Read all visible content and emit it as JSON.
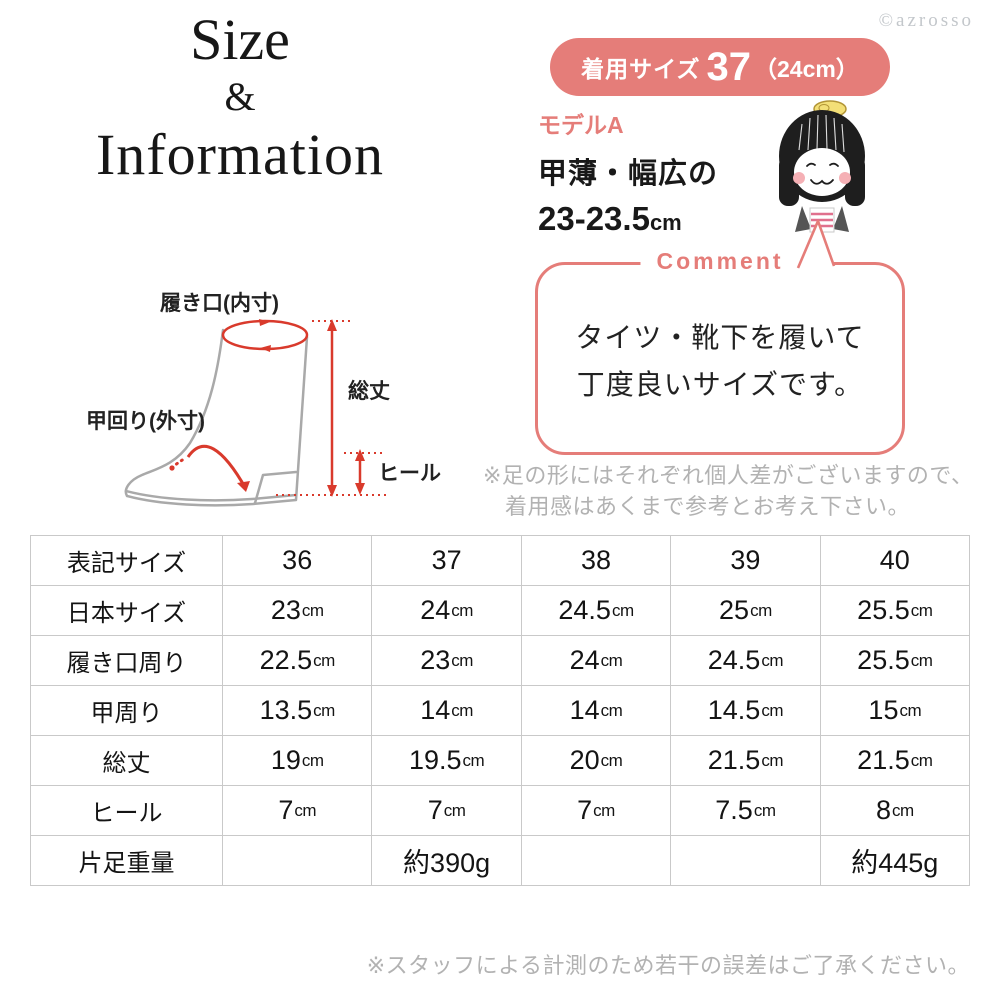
{
  "colors": {
    "accent_pink": "#e57d79",
    "diagram_red": "#d93a2c",
    "note_gray": "#b2b2b2",
    "table_border": "#c9c9c9",
    "text_black": "#1f1f1f"
  },
  "header": {
    "title_line1": "Size",
    "title_amp": "&",
    "title_line2": "Information",
    "copyright": "©azrosso"
  },
  "badge": {
    "prefix": "着用サイズ",
    "size": "37",
    "paren": "（24cm）"
  },
  "model": {
    "label": "モデルA",
    "foot_type": "甲薄・幅広の",
    "size_range": "23-23.5",
    "size_unit": "cm"
  },
  "comment": {
    "label": "Comment",
    "line1": "タイツ・靴下を履いて",
    "line2": "丁度良いサイズです。"
  },
  "disclaimer": {
    "line1": "※足の形にはそれぞれ個人差がございますので、",
    "line2": "着用感はあくまで参考とお考え下さい。"
  },
  "diagram": {
    "label_opening": "履き口(内寸)",
    "label_instep": "甲回り(外寸)",
    "label_height": "総丈",
    "label_heel": "ヒール"
  },
  "table": {
    "header_row": {
      "label": "表記サイズ",
      "values": [
        "36",
        "37",
        "38",
        "39",
        "40"
      ],
      "unit": ""
    },
    "rows": [
      {
        "label": "日本サイズ",
        "values": [
          "23",
          "24",
          "24.5",
          "25",
          "25.5"
        ],
        "unit": "cm"
      },
      {
        "label": "履き口周り",
        "values": [
          "22.5",
          "23",
          "24",
          "24.5",
          "25.5"
        ],
        "unit": "cm"
      },
      {
        "label": "甲周り",
        "values": [
          "13.5",
          "14",
          "14",
          "14.5",
          "15"
        ],
        "unit": "cm"
      },
      {
        "label": "総丈",
        "values": [
          "19",
          "19.5",
          "20",
          "21.5",
          "21.5"
        ],
        "unit": "cm"
      },
      {
        "label": "ヒール",
        "values": [
          "7",
          "7",
          "7",
          "7.5",
          "8"
        ],
        "unit": "cm"
      },
      {
        "label": "片足重量",
        "values": [
          "",
          "約390g",
          "",
          "",
          "約445g"
        ],
        "unit": ""
      }
    ]
  },
  "footnote": "※スタッフによる計測のため若干の誤差はご了承ください。"
}
